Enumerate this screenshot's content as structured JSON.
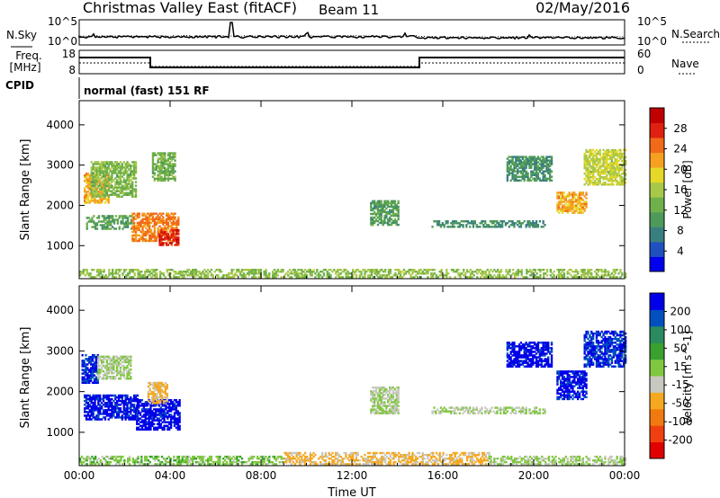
{
  "header": {
    "title": "Christmas Valley East (fitACF)",
    "beam": "Beam 11",
    "date": "02/May/2016"
  },
  "panels": {
    "nsky": {
      "label": "N.Sky",
      "ticks": [
        "10^5",
        "10^0"
      ],
      "right_label": "N.Search",
      "right_ticks": [
        "10^5",
        "10^0"
      ]
    },
    "freq": {
      "label_line1": "Freq.",
      "label_line2": "[MHz]",
      "ticks": [
        "18",
        "8"
      ],
      "right_label": "Nave",
      "right_ticks": [
        "60",
        "0"
      ]
    },
    "cpid": {
      "label": "CPID",
      "value": "normal (fast) 151 RF"
    }
  },
  "chart_data": [
    {
      "type": "heatmap",
      "title": "",
      "xlabel": "",
      "ylabel": "Slant Range [km]",
      "x_ticks": [
        "00:00",
        "04:00",
        "08:00",
        "12:00",
        "16:00",
        "20:00",
        "00:00"
      ],
      "y_ticks": [
        "1000",
        "2000",
        "3000",
        "4000"
      ],
      "ylim": [
        180,
        4600
      ],
      "colorbar": {
        "label": "Power [dB]",
        "ticks": [
          "28",
          "24",
          "20",
          "16",
          "12",
          "8",
          "4"
        ],
        "range": [
          0,
          30
        ],
        "colors": [
          "#0000ee",
          "#2050c0",
          "#3a7f80",
          "#4f9a5a",
          "#6fb04a",
          "#a8c84a",
          "#e6d828",
          "#f5a020",
          "#f06a1a",
          "#e02010",
          "#c00000"
        ]
      },
      "regions": [
        {
          "t": [
            0.2,
            1.3
          ],
          "r": [
            2050,
            2800
          ],
          "value": 20
        },
        {
          "t": [
            0.5,
            2.5
          ],
          "r": [
            2200,
            3100
          ],
          "value": 13
        },
        {
          "t": [
            0.3,
            2.4
          ],
          "r": [
            1400,
            1750
          ],
          "value": 10
        },
        {
          "t": [
            2.3,
            4.4
          ],
          "r": [
            1100,
            1800
          ],
          "value": 22
        },
        {
          "t": [
            3.5,
            4.4
          ],
          "r": [
            1000,
            1400
          ],
          "value": 26
        },
        {
          "t": [
            3.2,
            4.2
          ],
          "r": [
            2600,
            3300
          ],
          "value": 12
        },
        {
          "t": [
            12.8,
            14.0
          ],
          "r": [
            1500,
            2100
          ],
          "value": 10
        },
        {
          "t": [
            15.5,
            20.5
          ],
          "r": [
            1450,
            1600
          ],
          "value": 8
        },
        {
          "t": [
            18.8,
            20.8
          ],
          "r": [
            2600,
            3200
          ],
          "value": 9
        },
        {
          "t": [
            21.0,
            22.3
          ],
          "r": [
            1800,
            2300
          ],
          "value": 20
        },
        {
          "t": [
            22.2,
            24.0
          ],
          "r": [
            2500,
            3400
          ],
          "value": 16
        },
        {
          "t": [
            0.0,
            24.0
          ],
          "r": [
            200,
            420
          ],
          "value": 14
        }
      ]
    },
    {
      "type": "heatmap",
      "title": "",
      "xlabel": "Time UT",
      "ylabel": "Slant Range [km]",
      "x_ticks": [
        "00:00",
        "04:00",
        "08:00",
        "12:00",
        "16:00",
        "20:00",
        "00:00"
      ],
      "y_ticks": [
        "1000",
        "2000",
        "3000",
        "4000"
      ],
      "ylim": [
        180,
        4600
      ],
      "colorbar": {
        "label": "Velocity [m s^-1]",
        "ticks": [
          "200",
          "100",
          "50",
          "15",
          "-15",
          "-50",
          "-100",
          "-200"
        ],
        "range": [
          -250,
          250
        ],
        "colors": [
          "#e00000",
          "#f04010",
          "#f07a10",
          "#f5a820",
          "#c8c8c0",
          "#80c840",
          "#3aa030",
          "#2a8a60",
          "#0050c0",
          "#0000e8"
        ]
      },
      "regions": [
        {
          "t": [
            0.1,
            0.8
          ],
          "r": [
            2200,
            2900
          ],
          "value": 210
        },
        {
          "t": [
            0.8,
            2.3
          ],
          "r": [
            2300,
            2850
          ],
          "value": 0
        },
        {
          "t": [
            0.2,
            2.6
          ],
          "r": [
            1300,
            1900
          ],
          "value": 220
        },
        {
          "t": [
            2.5,
            4.4
          ],
          "r": [
            1050,
            1800
          ],
          "value": 230
        },
        {
          "t": [
            3.0,
            3.9
          ],
          "r": [
            1700,
            2200
          ],
          "value": -60
        },
        {
          "t": [
            12.8,
            14.0
          ],
          "r": [
            1450,
            2100
          ],
          "value": 0
        },
        {
          "t": [
            15.5,
            20.5
          ],
          "r": [
            1450,
            1600
          ],
          "value": 0
        },
        {
          "t": [
            18.8,
            20.8
          ],
          "r": [
            2600,
            3200
          ],
          "value": 230
        },
        {
          "t": [
            21.0,
            22.3
          ],
          "r": [
            1800,
            2500
          ],
          "value": 220
        },
        {
          "t": [
            22.2,
            24.0
          ],
          "r": [
            2600,
            3500
          ],
          "value": 200
        },
        {
          "t": [
            0.0,
            9.0
          ],
          "r": [
            200,
            420
          ],
          "value": 30
        },
        {
          "t": [
            9.0,
            18.0
          ],
          "r": [
            200,
            500
          ],
          "value": -60
        },
        {
          "t": [
            18.0,
            24.0
          ],
          "r": [
            200,
            400
          ],
          "value": 10
        }
      ]
    }
  ]
}
